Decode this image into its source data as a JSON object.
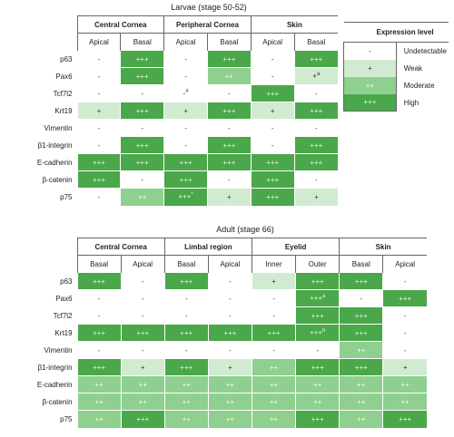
{
  "larvae": {
    "title": "Larvae (stage 50-52)",
    "groups": [
      "Central Cornea",
      "Peripheral Cornea",
      "Skin"
    ],
    "subs": [
      "Apical",
      "Basal",
      "Apical",
      "Basal",
      "Apical",
      "Basal"
    ],
    "rows": [
      {
        "label": "p63",
        "cells": [
          [
            "-",
            "none"
          ],
          [
            "+++",
            "high"
          ],
          [
            "-",
            "none"
          ],
          [
            "+++",
            "high"
          ],
          [
            "-",
            "none"
          ],
          [
            "+++",
            "high"
          ]
        ]
      },
      {
        "label": "Pax6",
        "cells": [
          [
            "-",
            "none"
          ],
          [
            "+++",
            "high"
          ],
          [
            "-",
            "none"
          ],
          [
            "++",
            "mod"
          ],
          [
            "-",
            "none"
          ],
          [
            "+",
            "weak",
            "a"
          ]
        ]
      },
      {
        "label": "Tcf7l2",
        "cells": [
          [
            "-",
            "none"
          ],
          [
            "-",
            "none"
          ],
          [
            "-",
            "none",
            "#"
          ],
          [
            "-",
            "none"
          ],
          [
            "+++",
            "high"
          ],
          [
            "-",
            "none"
          ]
        ]
      },
      {
        "label": "Krt19",
        "cells": [
          [
            "+",
            "weak"
          ],
          [
            "+++",
            "high"
          ],
          [
            "+",
            "weak"
          ],
          [
            "+++",
            "high"
          ],
          [
            "+",
            "weak"
          ],
          [
            "+++",
            "high"
          ]
        ]
      },
      {
        "label": "Vimentin",
        "cells": [
          [
            "-",
            "none"
          ],
          [
            "-",
            "none"
          ],
          [
            "-",
            "none"
          ],
          [
            "-",
            "none"
          ],
          [
            "-",
            "none"
          ],
          [
            "-",
            "none"
          ]
        ]
      },
      {
        "label": "β1-integrin",
        "cells": [
          [
            "-",
            "none"
          ],
          [
            "+++",
            "high"
          ],
          [
            "-",
            "none"
          ],
          [
            "+++",
            "high"
          ],
          [
            "-",
            "none"
          ],
          [
            "+++",
            "high"
          ]
        ]
      },
      {
        "label": "E-cadherin",
        "cells": [
          [
            "+++",
            "high"
          ],
          [
            "+++",
            "high"
          ],
          [
            "+++",
            "high"
          ],
          [
            "+++",
            "high"
          ],
          [
            "+++",
            "high"
          ],
          [
            "+++",
            "high"
          ]
        ]
      },
      {
        "label": "β-catenin",
        "cells": [
          [
            "+++",
            "high"
          ],
          [
            "-",
            "none"
          ],
          [
            "+++",
            "high"
          ],
          [
            "-",
            "none"
          ],
          [
            "+++",
            "high"
          ],
          [
            "-",
            "none"
          ]
        ]
      },
      {
        "label": "p75",
        "cells": [
          [
            "-",
            "none"
          ],
          [
            "++",
            "mod"
          ],
          [
            "+++",
            "high",
            "*"
          ],
          [
            "+",
            "weak"
          ],
          [
            "+++",
            "high"
          ],
          [
            "+",
            "weak"
          ]
        ]
      }
    ]
  },
  "adult": {
    "title": "Adult (stage 66)",
    "groups": [
      "Central Cornea",
      "Limbal region",
      "Eyelid",
      "Skin"
    ],
    "subs": [
      "Basal",
      "Apical",
      "Basal",
      "Apical",
      "Inner",
      "Outer",
      "Basal",
      "Apical"
    ],
    "rows": [
      {
        "label": "p63",
        "cells": [
          [
            "+++",
            "high"
          ],
          [
            "-",
            "none"
          ],
          [
            "+++",
            "high"
          ],
          [
            "-",
            "none"
          ],
          [
            "+",
            "weak"
          ],
          [
            "+++",
            "high"
          ],
          [
            "+++",
            "high"
          ],
          [
            "-",
            "none"
          ]
        ]
      },
      {
        "label": "Pax6",
        "cells": [
          [
            "-",
            "none"
          ],
          [
            "-",
            "none"
          ],
          [
            "-",
            "none"
          ],
          [
            "-",
            "none"
          ],
          [
            "-",
            "none"
          ],
          [
            "+++",
            "high",
            "a"
          ],
          [
            "-",
            "none"
          ],
          [
            "+++",
            "high"
          ]
        ]
      },
      {
        "label": "Tcf7l2",
        "cells": [
          [
            "-",
            "none"
          ],
          [
            "-",
            "none"
          ],
          [
            "-",
            "none"
          ],
          [
            "-",
            "none"
          ],
          [
            "-",
            "none"
          ],
          [
            "+++",
            "high"
          ],
          [
            "+++",
            "high"
          ],
          [
            "-",
            "none"
          ]
        ]
      },
      {
        "label": "Krt19",
        "cells": [
          [
            "+++",
            "high"
          ],
          [
            "+++",
            "high"
          ],
          [
            "+++",
            "high"
          ],
          [
            "+++",
            "high"
          ],
          [
            "+++",
            "high"
          ],
          [
            "+++",
            "high",
            "b"
          ],
          [
            "+++",
            "high"
          ],
          [
            "-",
            "none"
          ]
        ]
      },
      {
        "label": "Vimentin",
        "cells": [
          [
            "-",
            "none"
          ],
          [
            "-",
            "none"
          ],
          [
            "-",
            "none"
          ],
          [
            "-",
            "none"
          ],
          [
            "-",
            "none"
          ],
          [
            "-",
            "none"
          ],
          [
            "++",
            "mod"
          ],
          [
            "-",
            "none"
          ]
        ]
      },
      {
        "label": "β1-integrin",
        "cells": [
          [
            "+++",
            "high"
          ],
          [
            "+",
            "weak"
          ],
          [
            "+++",
            "high"
          ],
          [
            "+",
            "weak"
          ],
          [
            "++",
            "mod"
          ],
          [
            "+++",
            "high"
          ],
          [
            "+++",
            "high"
          ],
          [
            "+",
            "weak"
          ]
        ]
      },
      {
        "label": "E-cadherin",
        "cells": [
          [
            "++",
            "mod"
          ],
          [
            "++",
            "mod"
          ],
          [
            "++",
            "mod"
          ],
          [
            "++",
            "mod"
          ],
          [
            "++",
            "mod"
          ],
          [
            "++",
            "mod"
          ],
          [
            "++",
            "mod"
          ],
          [
            "++",
            "mod"
          ]
        ]
      },
      {
        "label": "β-catenin",
        "cells": [
          [
            "++",
            "mod"
          ],
          [
            "++",
            "mod"
          ],
          [
            "++",
            "mod"
          ],
          [
            "++",
            "mod"
          ],
          [
            "++",
            "mod"
          ],
          [
            "++",
            "mod"
          ],
          [
            "++",
            "mod"
          ],
          [
            "++",
            "mod"
          ]
        ]
      },
      {
        "label": "p75",
        "cells": [
          [
            "++",
            "mod"
          ],
          [
            "+++",
            "high"
          ],
          [
            "++",
            "mod"
          ],
          [
            "++",
            "mod"
          ],
          [
            "++",
            "mod"
          ],
          [
            "+++",
            "high"
          ],
          [
            "++",
            "mod"
          ],
          [
            "+++",
            "high"
          ]
        ]
      }
    ]
  },
  "legend": {
    "title": "Expression level",
    "items": [
      {
        "symbol": "-",
        "label": "Undetectable",
        "level": "none"
      },
      {
        "symbol": "+",
        "label": "Weak",
        "level": "weak"
      },
      {
        "symbol": "++",
        "label": "Moderate",
        "level": "mod"
      },
      {
        "symbol": "+++",
        "label": "High",
        "level": "high"
      }
    ]
  },
  "colors": {
    "none": "#ffffff",
    "weak": "#d1ebd1",
    "mod": "#8fcf8f",
    "high": "#4aa74a"
  }
}
